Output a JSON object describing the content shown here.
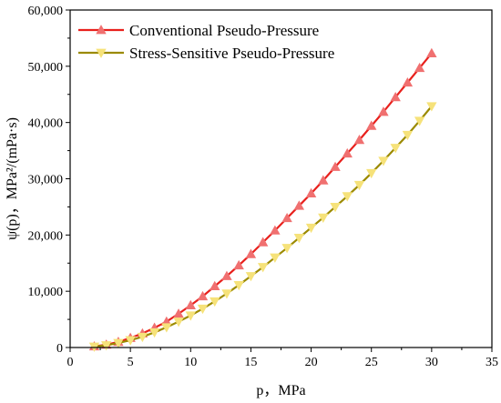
{
  "chart_data": {
    "type": "line",
    "xlabel": "p，MPa",
    "ylabel": "ψ(p)，MPa²/(mPa·s)",
    "xlim": [
      0,
      35
    ],
    "ylim": [
      0,
      60000
    ],
    "x_ticks": [
      "0",
      "5",
      "10",
      "15",
      "20",
      "25",
      "30",
      "35"
    ],
    "y_ticks": [
      "0",
      "10,000",
      "20,000",
      "30,000",
      "40,000",
      "50,000",
      "60,000"
    ],
    "legend_position": "top-left",
    "grid": false,
    "series": [
      {
        "name": "Conventional Pseudo-Pressure",
        "color": "#e8201c",
        "marker_color": "#f07070",
        "marker": "triangle-up",
        "points": [
          [
            2,
            200
          ],
          [
            3,
            500
          ],
          [
            4,
            1000
          ],
          [
            5,
            1700
          ],
          [
            6,
            2500
          ],
          [
            7,
            3500
          ],
          [
            8,
            4600
          ],
          [
            9,
            6000
          ],
          [
            10,
            7500
          ],
          [
            11,
            9100
          ],
          [
            12,
            10900
          ],
          [
            13,
            12700
          ],
          [
            14,
            14600
          ],
          [
            15,
            16600
          ],
          [
            16,
            18700
          ],
          [
            17,
            20800
          ],
          [
            18,
            23000
          ],
          [
            19,
            25200
          ],
          [
            20,
            27400
          ],
          [
            21,
            29700
          ],
          [
            22,
            32100
          ],
          [
            23,
            34500
          ],
          [
            24,
            36900
          ],
          [
            25,
            39400
          ],
          [
            26,
            41900
          ],
          [
            27,
            44500
          ],
          [
            28,
            47100
          ],
          [
            29,
            49700
          ],
          [
            30,
            52300
          ]
        ]
      },
      {
        "name": "Stress-Sensitive Pseudo-Pressure",
        "color": "#9b8a00",
        "marker_color": "#f6e27a",
        "marker": "triangle-down",
        "points": [
          [
            2,
            150
          ],
          [
            3,
            400
          ],
          [
            4,
            800
          ],
          [
            5,
            1300
          ],
          [
            6,
            1900
          ],
          [
            7,
            2700
          ],
          [
            8,
            3600
          ],
          [
            9,
            4600
          ],
          [
            10,
            5700
          ],
          [
            11,
            6900
          ],
          [
            12,
            8200
          ],
          [
            13,
            9600
          ],
          [
            14,
            11100
          ],
          [
            15,
            12700
          ],
          [
            16,
            14300
          ],
          [
            17,
            16000
          ],
          [
            18,
            17700
          ],
          [
            19,
            19500
          ],
          [
            20,
            21300
          ],
          [
            21,
            23100
          ],
          [
            22,
            25000
          ],
          [
            23,
            26900
          ],
          [
            24,
            28900
          ],
          [
            25,
            31000
          ],
          [
            26,
            33200
          ],
          [
            27,
            35500
          ],
          [
            28,
            37800
          ],
          [
            29,
            40300
          ],
          [
            30,
            42900
          ]
        ]
      }
    ]
  }
}
